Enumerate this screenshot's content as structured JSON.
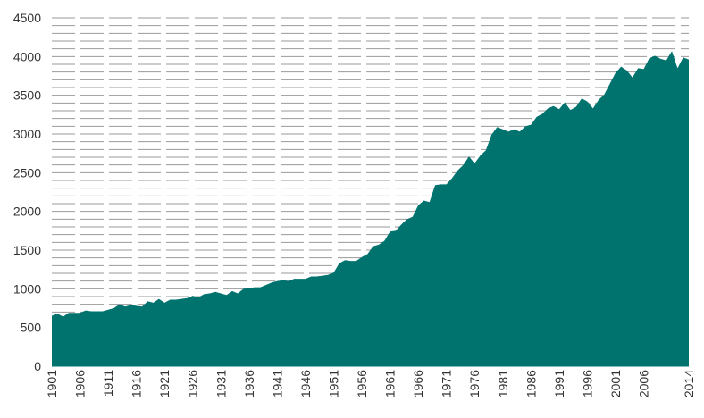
{
  "chart_data": {
    "type": "area",
    "title": "",
    "xlabel": "",
    "ylabel": "",
    "xlim": [
      1901,
      2014
    ],
    "ylim": [
      0,
      4500
    ],
    "y_ticks": [
      0,
      500,
      1000,
      1500,
      2000,
      2500,
      3000,
      3500,
      4000,
      4500
    ],
    "y_tick_labels": [
      "0",
      "500",
      "1000",
      "1500",
      "2000",
      "2500",
      "3000",
      "3500",
      "4000",
      "4500"
    ],
    "x_tick_labels": [
      "1901",
      "1906",
      "1911",
      "1916",
      "1921",
      "1926",
      "1931",
      "1936",
      "1941",
      "1946",
      "1951",
      "1956",
      "1961",
      "1966",
      "1971",
      "1976",
      "1981",
      "1986",
      "1991",
      "1996",
      "2001",
      "2006",
      "2014"
    ],
    "grid": "horizontal dashed",
    "legend": "none",
    "fill_color": "#00736f",
    "series": [
      {
        "x": [
          1901,
          1902,
          1903,
          1904,
          1905,
          1906,
          1907,
          1908,
          1909,
          1910,
          1911,
          1912,
          1913,
          1914,
          1915,
          1916,
          1917,
          1918,
          1919,
          1920,
          1921,
          1922,
          1923,
          1924,
          1925,
          1926,
          1927,
          1928,
          1929,
          1930,
          1931,
          1932,
          1933,
          1934,
          1935,
          1936,
          1937,
          1938,
          1939,
          1940,
          1941,
          1942,
          1943,
          1944,
          1945,
          1946,
          1947,
          1948,
          1949,
          1950,
          1951,
          1952,
          1953,
          1954,
          1955,
          1956,
          1957,
          1958,
          1959,
          1960,
          1961,
          1962,
          1963,
          1964,
          1965,
          1966,
          1967,
          1968,
          1969,
          1970,
          1971,
          1972,
          1973,
          1974,
          1975,
          1976,
          1977,
          1978,
          1979,
          1980,
          1981,
          1982,
          1983,
          1984,
          1985,
          1986,
          1987,
          1988,
          1989,
          1990,
          1991,
          1992,
          1993,
          1994,
          1995,
          1996,
          1997,
          1998,
          1999,
          2000,
          2001,
          2002,
          2003,
          2004,
          2005,
          2006,
          2007,
          2008,
          2009,
          2010,
          2011,
          2012,
          2013,
          2014
        ],
        "values": [
          650,
          680,
          640,
          690,
          690,
          690,
          720,
          710,
          710,
          710,
          730,
          750,
          800,
          770,
          790,
          780,
          770,
          840,
          820,
          870,
          820,
          860,
          860,
          870,
          880,
          910,
          890,
          930,
          940,
          960,
          940,
          920,
          970,
          940,
          1000,
          1010,
          1020,
          1020,
          1050,
          1080,
          1100,
          1110,
          1100,
          1130,
          1130,
          1130,
          1160,
          1160,
          1170,
          1180,
          1210,
          1330,
          1370,
          1360,
          1360,
          1410,
          1450,
          1550,
          1570,
          1620,
          1740,
          1750,
          1830,
          1900,
          1930,
          2080,
          2140,
          2120,
          2340,
          2350,
          2350,
          2430,
          2530,
          2600,
          2710,
          2620,
          2720,
          2790,
          2990,
          3090,
          3060,
          3030,
          3060,
          3030,
          3100,
          3120,
          3220,
          3260,
          3330,
          3360,
          3320,
          3410,
          3310,
          3350,
          3460,
          3420,
          3330,
          3440,
          3510,
          3650,
          3790,
          3870,
          3820,
          3730,
          3850,
          3840,
          3980,
          4010,
          3970,
          3950,
          4070,
          3850,
          3990,
          3960
        ]
      }
    ]
  }
}
